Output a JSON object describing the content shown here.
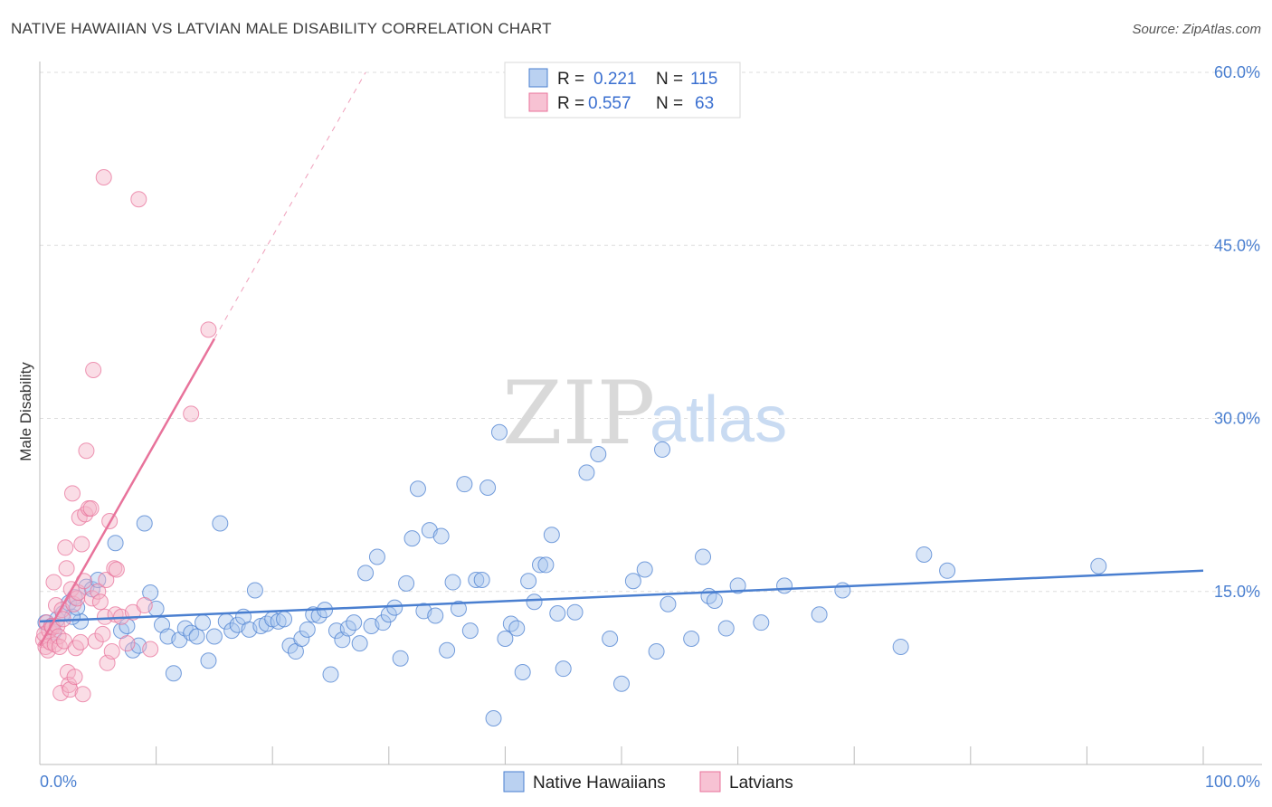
{
  "title": "NATIVE HAWAIIAN VS LATVIAN MALE DISABILITY CORRELATION CHART",
  "source": "Source: ZipAtlas.com",
  "watermark": {
    "part1": "ZIP",
    "part2": "atlas"
  },
  "colors": {
    "blue": "#4a7fd0",
    "blue_fill": "#a9c6ee",
    "pink": "#e8739b",
    "pink_fill": "#f5b3c8",
    "grid": "#dddddd"
  },
  "chart_data": {
    "type": "scatter",
    "title": "NATIVE HAWAIIAN VS LATVIAN MALE DISABILITY CORRELATION CHART",
    "xlabel": "",
    "ylabel": "Male Disability",
    "xlim": [
      0,
      100
    ],
    "ylim": [
      0,
      60
    ],
    "x_tick_labels": [
      "0.0%",
      "100.0%"
    ],
    "y_ticks": [
      15,
      30,
      45,
      60
    ],
    "y_tick_labels": [
      "15.0%",
      "30.0%",
      "45.0%",
      "60.0%"
    ],
    "grid": true,
    "legend": {
      "placement": "top-center",
      "entries": [
        {
          "r_label": "R =",
          "r_value": "0.221",
          "n_label": "N =",
          "n_value": "115"
        },
        {
          "r_label": "R =",
          "r_value": "0.557",
          "n_label": "N =",
          "n_value": "63"
        }
      ]
    },
    "bottom_legend": [
      "Native Hawaiians",
      "Latvians"
    ],
    "series": [
      {
        "name": "Native Hawaiians",
        "color": "#4a7fd0",
        "trend": {
          "x": [
            0,
            100
          ],
          "y": [
            12.4,
            16.8
          ],
          "dashed_extension": false
        },
        "points": [
          [
            0.5,
            12.3
          ],
          [
            1,
            12.0
          ],
          [
            1.5,
            12.6
          ],
          [
            2,
            13.1
          ],
          [
            2.5,
            14.0
          ],
          [
            3,
            14.5
          ],
          [
            3.5,
            12.4
          ],
          [
            4,
            15.4
          ],
          [
            4.5,
            15.2
          ],
          [
            5,
            16.0
          ],
          [
            6.5,
            19.2
          ],
          [
            7,
            11.6
          ],
          [
            7.5,
            12.0
          ],
          [
            8,
            9.9
          ],
          [
            8.5,
            10.3
          ],
          [
            9,
            20.9
          ],
          [
            9.5,
            14.9
          ],
          [
            10,
            13.5
          ],
          [
            10.5,
            12.1
          ],
          [
            11,
            11.1
          ],
          [
            11.5,
            7.9
          ],
          [
            12,
            10.8
          ],
          [
            12.5,
            11.8
          ],
          [
            13,
            11.4
          ],
          [
            13.5,
            11.1
          ],
          [
            14,
            12.3
          ],
          [
            14.5,
            9.0
          ],
          [
            15,
            11.1
          ],
          [
            15.5,
            20.9
          ],
          [
            16,
            12.4
          ],
          [
            16.5,
            11.6
          ],
          [
            17,
            12.1
          ],
          [
            17.5,
            12.8
          ],
          [
            18,
            11.7
          ],
          [
            18.5,
            15.1
          ],
          [
            19,
            12.0
          ],
          [
            19.5,
            12.2
          ],
          [
            20,
            12.6
          ],
          [
            20.5,
            12.4
          ],
          [
            21,
            12.6
          ],
          [
            21.5,
            10.3
          ],
          [
            22,
            9.8
          ],
          [
            22.5,
            10.9
          ],
          [
            23,
            11.7
          ],
          [
            23.5,
            13.0
          ],
          [
            24,
            12.9
          ],
          [
            24.5,
            13.4
          ],
          [
            25,
            7.8
          ],
          [
            25.5,
            11.6
          ],
          [
            26,
            10.8
          ],
          [
            26.5,
            11.8
          ],
          [
            27,
            12.3
          ],
          [
            27.5,
            10.5
          ],
          [
            28,
            16.6
          ],
          [
            28.5,
            12.0
          ],
          [
            29,
            18.0
          ],
          [
            29.5,
            12.3
          ],
          [
            30,
            13.0
          ],
          [
            30.5,
            13.6
          ],
          [
            31,
            9.2
          ],
          [
            31.5,
            15.7
          ],
          [
            32,
            19.6
          ],
          [
            32.5,
            23.9
          ],
          [
            33,
            13.3
          ],
          [
            33.5,
            20.3
          ],
          [
            34,
            12.9
          ],
          [
            34.5,
            19.8
          ],
          [
            35,
            9.9
          ],
          [
            35.5,
            15.8
          ],
          [
            36,
            13.5
          ],
          [
            36.5,
            24.3
          ],
          [
            37,
            11.6
          ],
          [
            37.5,
            16.0
          ],
          [
            38,
            16.0
          ],
          [
            38.5,
            24.0
          ],
          [
            39,
            4.0
          ],
          [
            39.5,
            28.8
          ],
          [
            40,
            10.9
          ],
          [
            40.5,
            12.2
          ],
          [
            41,
            11.8
          ],
          [
            41.5,
            8.0
          ],
          [
            42,
            15.9
          ],
          [
            42.5,
            14.1
          ],
          [
            43,
            17.3
          ],
          [
            43.5,
            17.3
          ],
          [
            44,
            19.9
          ],
          [
            44.5,
            13.1
          ],
          [
            45,
            8.3
          ],
          [
            46,
            13.2
          ],
          [
            47,
            25.3
          ],
          [
            48,
            26.9
          ],
          [
            49,
            10.9
          ],
          [
            50,
            7.0
          ],
          [
            51,
            15.9
          ],
          [
            52,
            16.9
          ],
          [
            53,
            9.8
          ],
          [
            53.5,
            27.3
          ],
          [
            54,
            13.9
          ],
          [
            56,
            10.9
          ],
          [
            57,
            18.0
          ],
          [
            57.5,
            14.6
          ],
          [
            58,
            14.2
          ],
          [
            59,
            11.8
          ],
          [
            60,
            15.5
          ],
          [
            62,
            12.3
          ],
          [
            64,
            15.5
          ],
          [
            67,
            13.0
          ],
          [
            69,
            15.1
          ],
          [
            74,
            10.2
          ],
          [
            76,
            18.2
          ],
          [
            78,
            16.8
          ],
          [
            91,
            17.2
          ],
          [
            1.2,
            11.5
          ],
          [
            2.8,
            12.8
          ],
          [
            3.2,
            13.6
          ]
        ]
      },
      {
        "name": "Latvians",
        "color": "#e8739b",
        "trend": {
          "x": [
            0,
            15
          ],
          "y": [
            10.3,
            36.9
          ],
          "dashed_to": [
            28,
            60
          ]
        },
        "points": [
          [
            0.3,
            10.8
          ],
          [
            0.4,
            11.3
          ],
          [
            0.5,
            10.2
          ],
          [
            0.6,
            12.3
          ],
          [
            0.7,
            9.9
          ],
          [
            0.8,
            11.6
          ],
          [
            0.9,
            10.6
          ],
          [
            1.0,
            12.0
          ],
          [
            1.1,
            11.9
          ],
          [
            1.2,
            15.8
          ],
          [
            1.3,
            10.4
          ],
          [
            1.4,
            13.8
          ],
          [
            1.5,
            12.0
          ],
          [
            1.6,
            11.1
          ],
          [
            1.7,
            10.2
          ],
          [
            1.8,
            6.2
          ],
          [
            1.9,
            13.4
          ],
          [
            2.0,
            12.6
          ],
          [
            2.1,
            10.7
          ],
          [
            2.2,
            18.8
          ],
          [
            2.3,
            17.0
          ],
          [
            2.4,
            8.0
          ],
          [
            2.5,
            6.9
          ],
          [
            2.6,
            6.5
          ],
          [
            2.7,
            15.2
          ],
          [
            2.8,
            23.5
          ],
          [
            2.9,
            13.9
          ],
          [
            3.0,
            7.6
          ],
          [
            3.1,
            10.1
          ],
          [
            3.2,
            14.4
          ],
          [
            3.3,
            14.9
          ],
          [
            3.4,
            21.4
          ],
          [
            3.5,
            10.6
          ],
          [
            3.6,
            19.1
          ],
          [
            3.7,
            6.1
          ],
          [
            3.8,
            15.9
          ],
          [
            3.9,
            21.7
          ],
          [
            4.0,
            27.2
          ],
          [
            4.2,
            22.2
          ],
          [
            4.4,
            22.2
          ],
          [
            4.5,
            14.4
          ],
          [
            4.6,
            34.2
          ],
          [
            4.8,
            10.7
          ],
          [
            5.0,
            15.0
          ],
          [
            5.2,
            14.1
          ],
          [
            5.4,
            11.3
          ],
          [
            5.6,
            12.8
          ],
          [
            5.7,
            16.0
          ],
          [
            5.8,
            8.8
          ],
          [
            6.0,
            21.1
          ],
          [
            6.2,
            9.8
          ],
          [
            6.4,
            17.0
          ],
          [
            6.5,
            13.0
          ],
          [
            6.6,
            16.9
          ],
          [
            7.0,
            12.8
          ],
          [
            7.5,
            10.5
          ],
          [
            8.0,
            13.2
          ],
          [
            8.5,
            49.0
          ],
          [
            9.0,
            13.8
          ],
          [
            9.5,
            10.0
          ],
          [
            13.0,
            30.4
          ],
          [
            14.5,
            37.7
          ],
          [
            5.5,
            50.9
          ]
        ]
      }
    ]
  }
}
